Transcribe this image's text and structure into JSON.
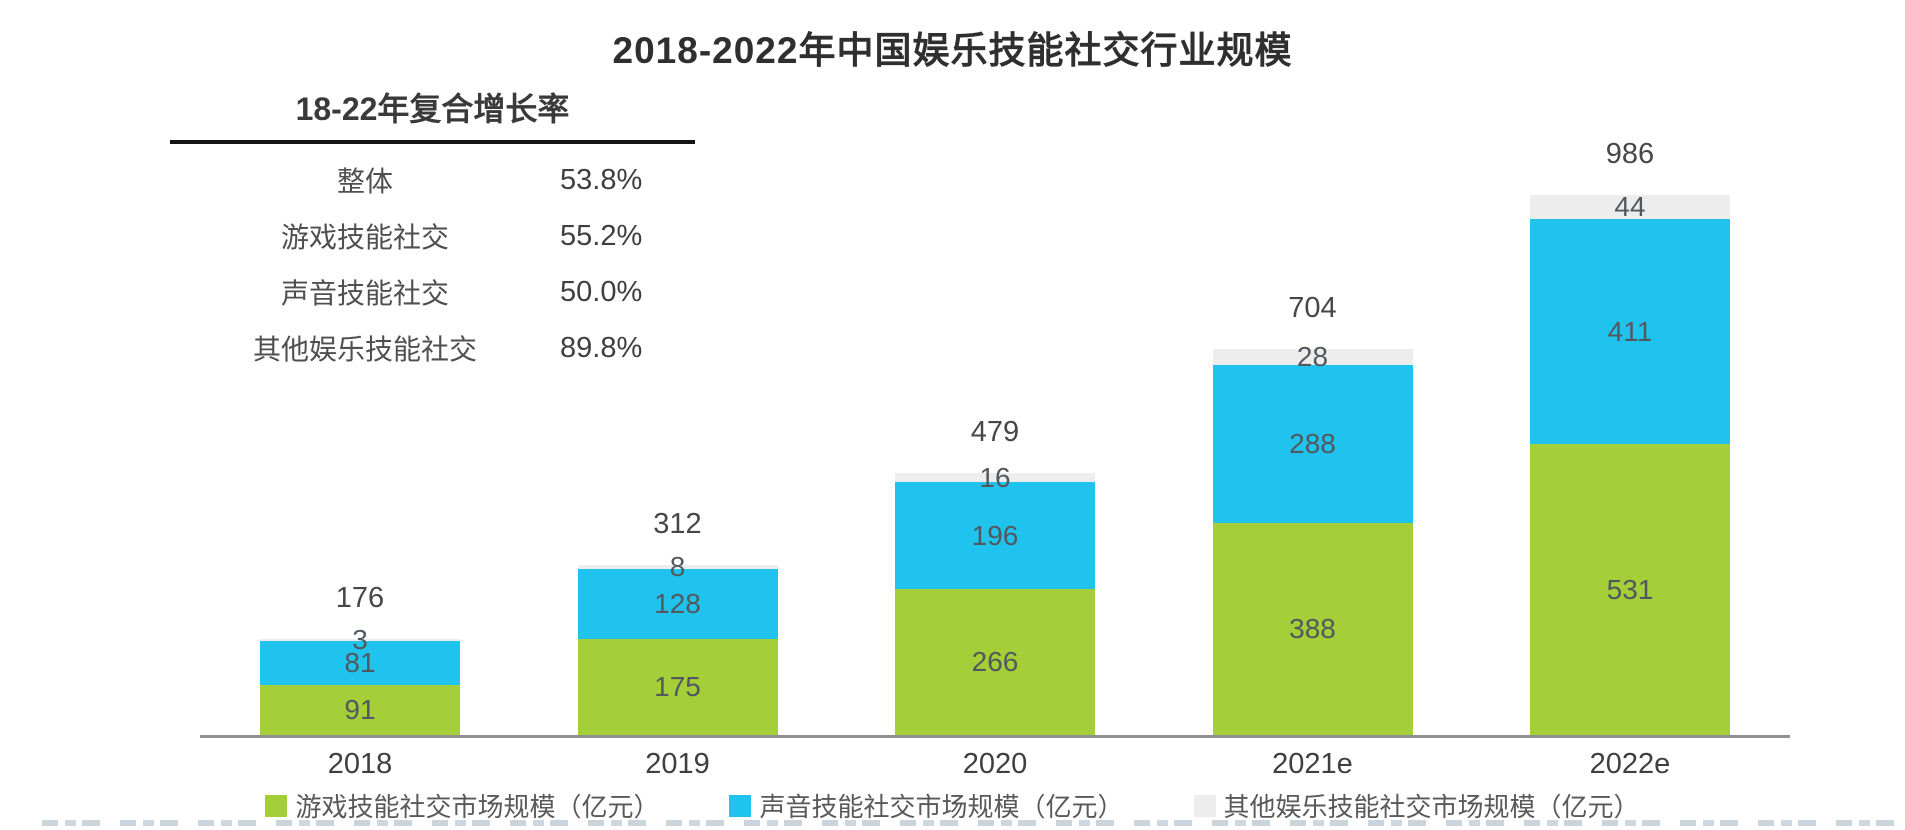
{
  "title": "2018-2022年中国娱乐技能社交行业规模",
  "cagr_table": {
    "header": "18-22年复合增长率",
    "rows": [
      {
        "label": "整体",
        "value": "53.8%"
      },
      {
        "label": "游戏技能社交",
        "value": "55.2%"
      },
      {
        "label": "声音技能社交",
        "value": "50.0%"
      },
      {
        "label": "其他娱乐技能社交",
        "value": "89.8%"
      }
    ]
  },
  "chart_data": {
    "type": "bar",
    "stacked": true,
    "title": "2018-2022年中国娱乐技能社交行业规模",
    "categories": [
      "2018",
      "2019",
      "2020",
      "2021e",
      "2022e"
    ],
    "series": [
      {
        "name": "游戏技能社交市场规模（亿元）",
        "color": "#a4cf38",
        "values": [
          91,
          175,
          266,
          388,
          531
        ]
      },
      {
        "name": "声音技能社交市场规模（亿元）",
        "color": "#1fc3ee",
        "values": [
          81,
          128,
          196,
          288,
          411
        ]
      },
      {
        "name": "其他娱乐技能社交市场规模（亿元）",
        "color": "#ededee",
        "values": [
          3,
          8,
          16,
          28,
          44
        ]
      }
    ],
    "totals": [
      176,
      312,
      479,
      704,
      986
    ],
    "unit": "亿元",
    "ylim": [
      0,
      1000
    ],
    "grid": false,
    "legend_position": "bottom",
    "label_color": "#52595e"
  },
  "colors": {
    "game": "#a4cf38",
    "voice": "#1fc3ee",
    "other": "#ededee",
    "axis": "#8f8f8f",
    "text": "#4f4f4f"
  }
}
